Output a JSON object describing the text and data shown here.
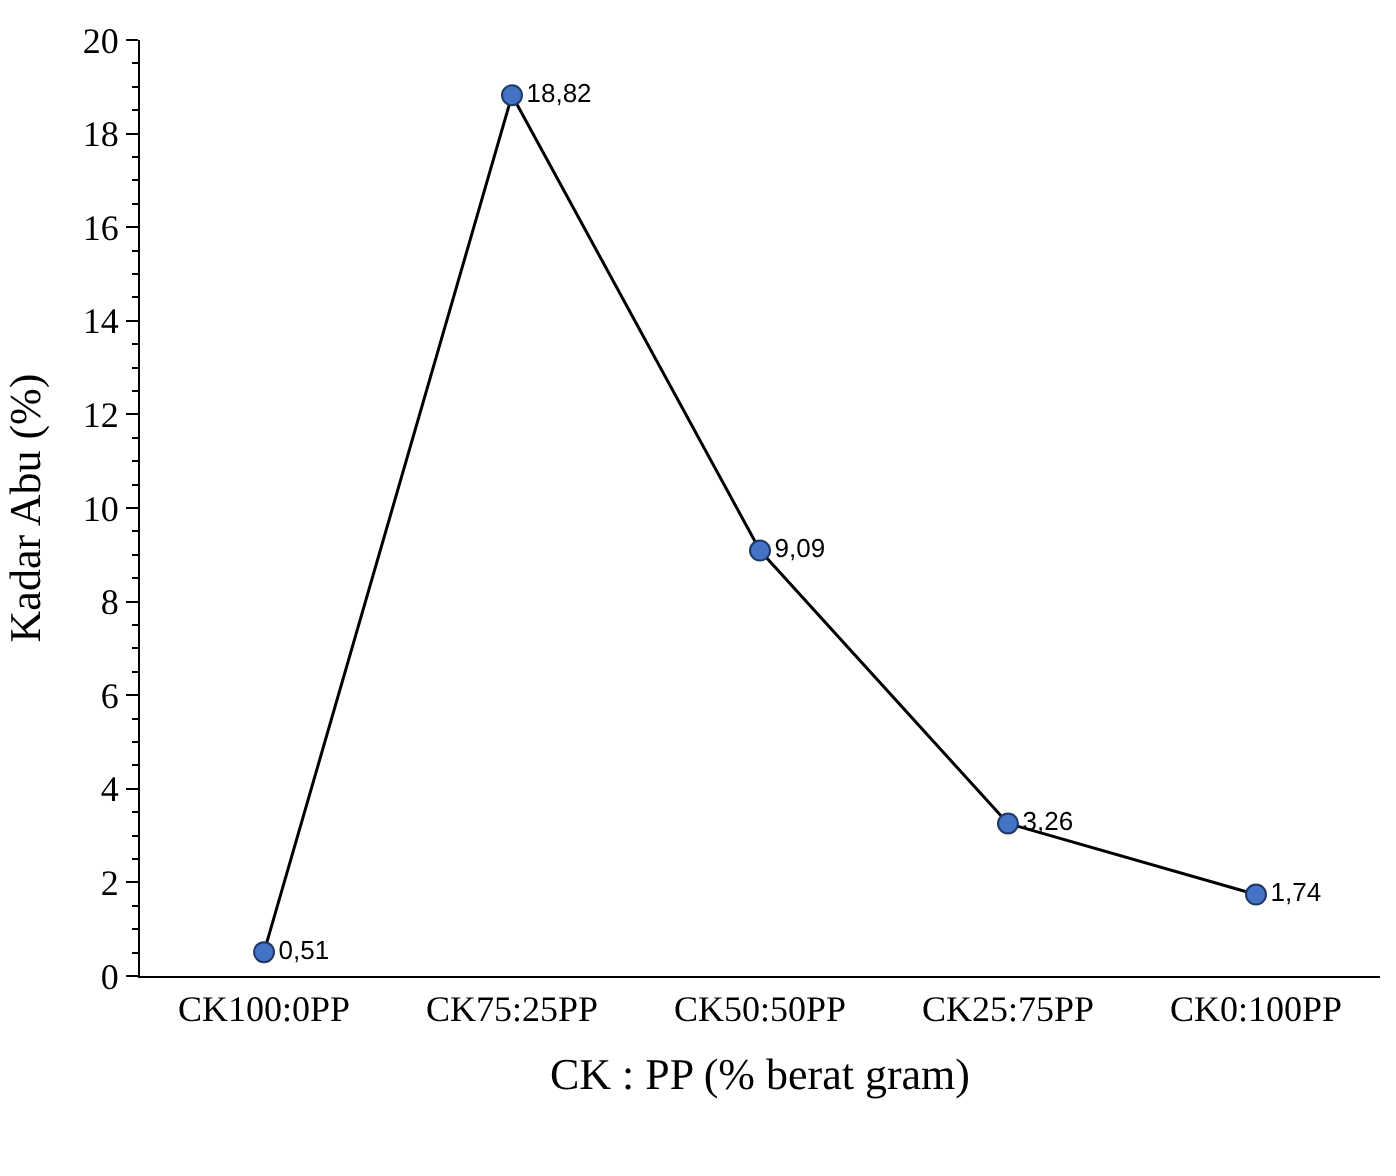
{
  "chart_data": {
    "type": "line",
    "xlabel": "CK : PP (% berat gram)",
    "ylabel": "Kadar Abu (%)",
    "categories": [
      "CK100:0PP",
      "CK75:25PP",
      "CK50:50PP",
      "CK25:75PP",
      "CK0:100PP"
    ],
    "series": [
      {
        "color": "#4472c4",
        "values": [
          0.51,
          18.82,
          9.09,
          3.26,
          1.74
        ],
        "value_labels": [
          "0,51",
          "18,82",
          "9,09",
          "3,26",
          "1,74"
        ]
      }
    ],
    "ylim": [
      0,
      20
    ],
    "yticks": [
      0,
      2,
      4,
      6,
      8,
      10,
      12,
      14,
      16,
      18,
      20
    ],
    "marker": "circle",
    "line_style": "solid"
  }
}
